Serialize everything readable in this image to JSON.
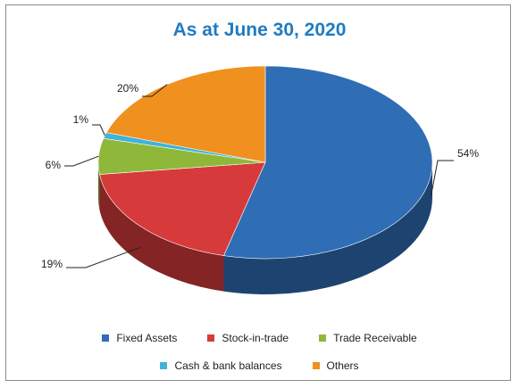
{
  "chart_data": {
    "type": "pie",
    "title": "As at June 30, 2020",
    "slices": [
      {
        "name": "Fixed Assets",
        "value": 54,
        "label": "54%",
        "color": "#2f6db5"
      },
      {
        "name": "Stock-in-trade",
        "value": 19,
        "label": "19%",
        "color": "#d63a3a"
      },
      {
        "name": "Trade Receivable",
        "value": 6,
        "label": "6%",
        "color": "#8fb83a"
      },
      {
        "name": "Cash & bank balances",
        "value": 1,
        "label": "1%",
        "color": "#3fb4d6"
      },
      {
        "name": "Others",
        "value": 20,
        "label": "20%",
        "color": "#f0901e"
      }
    ],
    "legend_position": "bottom"
  }
}
